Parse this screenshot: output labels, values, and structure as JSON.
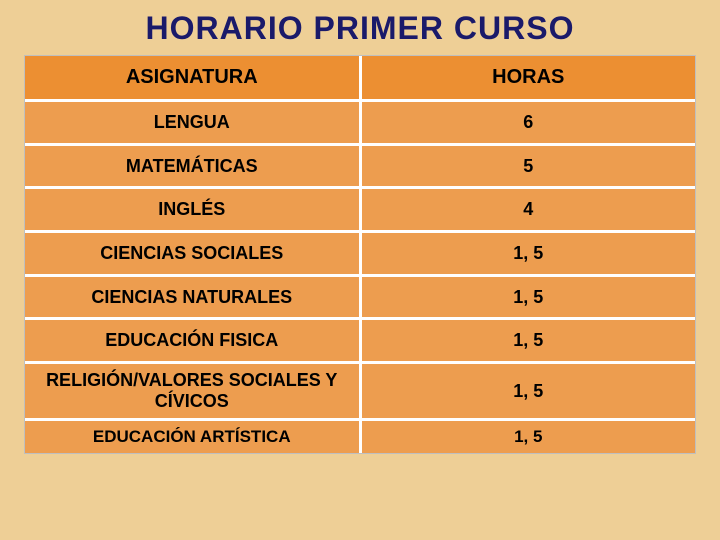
{
  "title": "HORARIO PRIMER CURSO",
  "table": {
    "columns": [
      "ASIGNATURA",
      "HORAS"
    ],
    "rows": [
      {
        "subject": "LENGUA",
        "hours": "6"
      },
      {
        "subject": "MATEMÁTICAS",
        "hours": "5"
      },
      {
        "subject": "INGLÉS",
        "hours": "4"
      },
      {
        "subject": "CIENCIAS SOCIALES",
        "hours": "1, 5"
      },
      {
        "subject": "CIENCIAS  NATURALES",
        "hours": "1, 5"
      },
      {
        "subject": "EDUCACIÓN FISICA",
        "hours": "1, 5"
      },
      {
        "subject": "RELIGIÓN/VALORES SOCIALES Y CÍVICOS",
        "hours": "1, 5"
      },
      {
        "subject": "EDUCACIÓN ARTÍSTICA",
        "hours": "1, 5"
      }
    ],
    "colors": {
      "page_bg": "#eecf96",
      "title_color": "#1a1a6a",
      "header_bg": "#ec8f32",
      "row_bg": "#ed9d4f",
      "border": "#ffffff"
    },
    "font": {
      "family": "Comic Sans MS",
      "title_size_pt": 32,
      "header_size_pt": 20,
      "body_size_pt": 18
    }
  }
}
